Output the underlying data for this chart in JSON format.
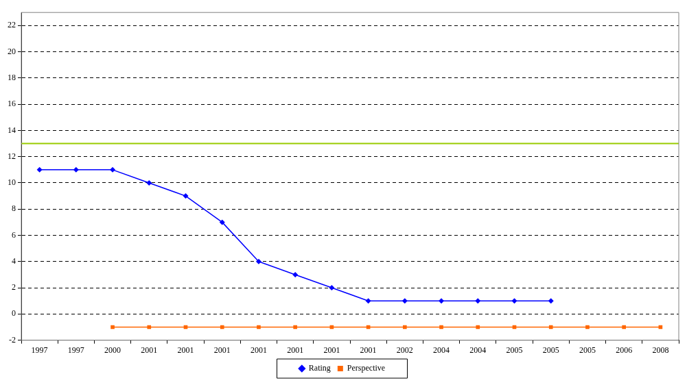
{
  "chart_data": {
    "type": "line",
    "categories": [
      "1997",
      "1997",
      "2000",
      "2001",
      "2001",
      "2001",
      "2001",
      "2001",
      "2001",
      "2001",
      "2002",
      "2004",
      "2004",
      "2005",
      "2005",
      "2005",
      "2006",
      "2008"
    ],
    "series": [
      {
        "name": "Rating",
        "color": "#0000ff",
        "marker": "diamond",
        "values": [
          11,
          11,
          11,
          10,
          9,
          7,
          4,
          3,
          2,
          1,
          1,
          1,
          1,
          1,
          1,
          null,
          null,
          null
        ]
      },
      {
        "name": "Perspective",
        "color": "#ff6600",
        "marker": "square",
        "values": [
          null,
          null,
          -1,
          -1,
          -1,
          -1,
          -1,
          -1,
          -1,
          -1,
          -1,
          -1,
          -1,
          -1,
          -1,
          -1,
          -1,
          -1
        ]
      }
    ],
    "ylim": [
      -2,
      23
    ],
    "yticks": [
      -2,
      0,
      2,
      4,
      6,
      8,
      10,
      12,
      14,
      16,
      18,
      20,
      22
    ],
    "ref_lines": [
      {
        "axis": "y",
        "value": 13,
        "color": "#99cc00",
        "line_style": "solid"
      }
    ],
    "grid": "y",
    "legend": "bottom",
    "line_style": "solid"
  }
}
